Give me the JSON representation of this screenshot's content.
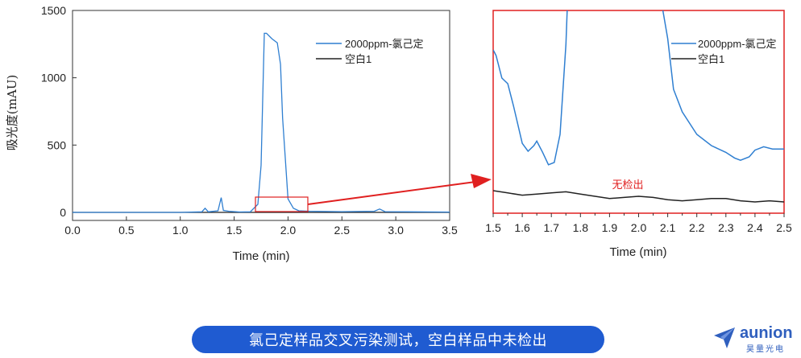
{
  "colors": {
    "series_main": "#2f7fd1",
    "series_blank": "#222222",
    "zoom_box": "#e02020",
    "arrow": "#e02020",
    "no_detect": "#e02020",
    "pill": "#1f5bd1",
    "brand": "#2f5fbe"
  },
  "chart_data": [
    {
      "type": "line",
      "title": "",
      "xlabel": "Time (min)",
      "ylabel": "吸光度(mAU)",
      "xlim": [
        0.0,
        3.5
      ],
      "ylim": [
        -60,
        1500
      ],
      "xticks": [
        "0.0",
        "0.5",
        "1.0",
        "1.5",
        "2.0",
        "2.5",
        "3.0",
        "3.5"
      ],
      "yticks": [
        "0",
        "500",
        "1000",
        "1500"
      ],
      "legend_position": "top-right",
      "grid": false,
      "series": [
        {
          "name": "2000ppm-氯己定",
          "x": [
            0.0,
            1.0,
            1.2,
            1.23,
            1.26,
            1.35,
            1.38,
            1.4,
            1.45,
            1.55,
            1.65,
            1.72,
            1.75,
            1.78,
            1.8,
            1.85,
            1.9,
            1.93,
            1.95,
            2.0,
            2.05,
            2.1,
            2.2,
            2.5,
            2.8,
            2.85,
            2.9,
            3.5
          ],
          "y": [
            0,
            0,
            4,
            30,
            4,
            12,
            110,
            15,
            8,
            3,
            4,
            60,
            350,
            1330,
            1330,
            1290,
            1260,
            1100,
            700,
            100,
            30,
            12,
            8,
            5,
            8,
            25,
            5,
            2
          ]
        },
        {
          "name": "空白1",
          "x": [
            0.0,
            1.0,
            1.5,
            2.0,
            2.5,
            3.0,
            3.5
          ],
          "y": [
            0,
            0,
            0,
            0,
            0,
            0,
            0
          ]
        }
      ]
    },
    {
      "type": "line",
      "title": "",
      "xlabel": "Time (min)",
      "ylabel": "",
      "xlim": [
        1.5,
        2.5
      ],
      "ylim": [
        -10,
        170
      ],
      "xticks": [
        "1.5",
        "1.6",
        "1.7",
        "1.8",
        "1.9",
        "2.0",
        "2.1",
        "2.2",
        "2.3",
        "2.4",
        "2.5"
      ],
      "yticks": [],
      "legend_position": "top-right",
      "grid": false,
      "annotation": "无检出",
      "series": [
        {
          "name": "2000ppm-氯己定",
          "x": [
            1.5,
            1.51,
            1.53,
            1.55,
            1.57,
            1.6,
            1.62,
            1.64,
            1.65,
            1.67,
            1.69,
            1.71,
            1.73,
            1.75,
            1.755,
            1.76,
            2.08,
            2.1,
            2.12,
            2.15,
            2.2,
            2.25,
            2.3,
            2.33,
            2.35,
            2.38,
            2.4,
            2.43,
            2.46,
            2.5
          ],
          "y": [
            135,
            130,
            110,
            105,
            85,
            52,
            45,
            50,
            54,
            44,
            33,
            35,
            60,
            140,
            175,
            175,
            175,
            145,
            100,
            80,
            60,
            50,
            44,
            39,
            37,
            40,
            46,
            49,
            47,
            47
          ]
        },
        {
          "name": "空白1",
          "x": [
            1.5,
            1.55,
            1.6,
            1.65,
            1.7,
            1.75,
            1.8,
            1.85,
            1.9,
            1.95,
            2.0,
            2.05,
            2.1,
            2.15,
            2.2,
            2.25,
            2.3,
            2.35,
            2.4,
            2.45,
            2.5
          ],
          "y": [
            10,
            8,
            6,
            7,
            8,
            9,
            7,
            5,
            3,
            4,
            5,
            4,
            2,
            1,
            2,
            3,
            3,
            1,
            0,
            1,
            0
          ]
        }
      ]
    }
  ],
  "caption": "氯己定样品交叉污染测试，空白样品中未检出",
  "logo": {
    "name": "aunion",
    "sub": "昊量光电"
  }
}
